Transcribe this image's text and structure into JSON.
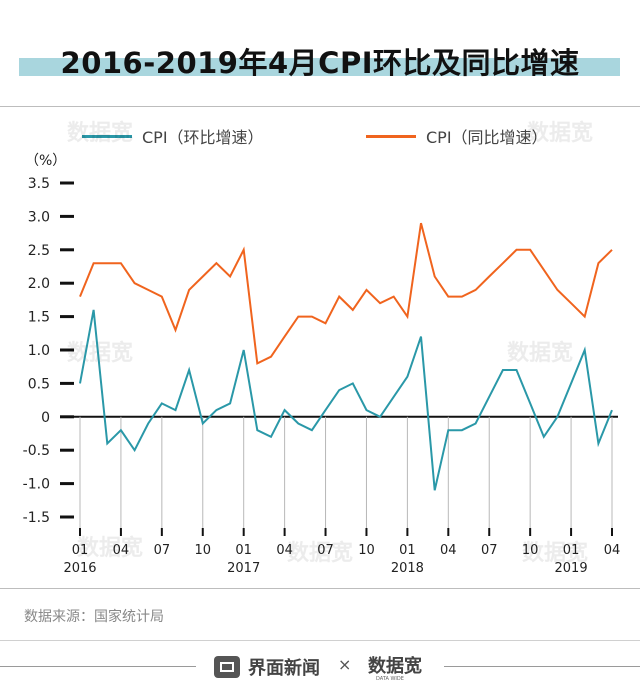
{
  "title": "2016-2019年4月CPI环比及同比增速",
  "unit_label": "（%）",
  "source_text": "数据来源：国家统计局",
  "footer": {
    "brand_name": "界面新闻",
    "times_sign": "×",
    "partner_logo_name": "data-wide-logo",
    "partner_logo_text": "数据宽",
    "partner_logo_sub": "DATA WIDE"
  },
  "colors": {
    "series_mom": "#2a98a8",
    "series_yoy": "#f0641e",
    "title_band": "#a9d6de",
    "axis": "#111111"
  },
  "chart_data": {
    "type": "line",
    "ylim": [
      -1.5,
      3.5
    ],
    "yticks": [
      "3.5",
      "3.0",
      "2.5",
      "2.0",
      "1.5",
      "1.0",
      "0.5",
      "0",
      "-0.5",
      "-1.0",
      "-1.5"
    ],
    "ytick_values": [
      3.5,
      3.0,
      2.5,
      2.0,
      1.5,
      1.0,
      0.5,
      0,
      -0.5,
      -1.0,
      -1.5
    ],
    "x_months": [
      "2016-01",
      "2016-02",
      "2016-03",
      "2016-04",
      "2016-05",
      "2016-06",
      "2016-07",
      "2016-08",
      "2016-09",
      "2016-10",
      "2016-11",
      "2016-12",
      "2017-01",
      "2017-02",
      "2017-03",
      "2017-04",
      "2017-05",
      "2017-06",
      "2017-07",
      "2017-08",
      "2017-09",
      "2017-10",
      "2017-11",
      "2017-12",
      "2018-01",
      "2018-02",
      "2018-03",
      "2018-04",
      "2018-05",
      "2018-06",
      "2018-07",
      "2018-08",
      "2018-09",
      "2018-10",
      "2018-11",
      "2018-12",
      "2019-01",
      "2019-02",
      "2019-03",
      "2019-04"
    ],
    "tick_labels": [
      {
        "index": 0,
        "month": "01",
        "year": "2016"
      },
      {
        "index": 3,
        "month": "04",
        "year": ""
      },
      {
        "index": 6,
        "month": "07",
        "year": ""
      },
      {
        "index": 9,
        "month": "10",
        "year": ""
      },
      {
        "index": 12,
        "month": "01",
        "year": "2017"
      },
      {
        "index": 15,
        "month": "04",
        "year": ""
      },
      {
        "index": 18,
        "month": "07",
        "year": ""
      },
      {
        "index": 21,
        "month": "10",
        "year": ""
      },
      {
        "index": 24,
        "month": "01",
        "year": "2018"
      },
      {
        "index": 27,
        "month": "04",
        "year": ""
      },
      {
        "index": 30,
        "month": "07",
        "year": ""
      },
      {
        "index": 33,
        "month": "10",
        "year": ""
      },
      {
        "index": 36,
        "month": "01",
        "year": "2019"
      },
      {
        "index": 39,
        "month": "04",
        "year": ""
      }
    ],
    "legend_position": "top",
    "grid": false,
    "series": [
      {
        "name": "CPI（环比增速）",
        "key": "mom",
        "values": [
          0.5,
          1.6,
          -0.4,
          -0.2,
          -0.5,
          -0.1,
          0.2,
          0.1,
          0.7,
          -0.1,
          0.1,
          0.2,
          1.0,
          -0.2,
          -0.3,
          0.1,
          -0.1,
          -0.2,
          0.1,
          0.4,
          0.5,
          0.1,
          0.0,
          0.3,
          0.6,
          1.2,
          -1.1,
          -0.2,
          -0.2,
          -0.1,
          0.3,
          0.7,
          0.7,
          0.2,
          -0.3,
          0.0,
          0.5,
          1.0,
          -0.4,
          0.1
        ]
      },
      {
        "name": "CPI（同比增速）",
        "key": "yoy",
        "values": [
          1.8,
          2.3,
          2.3,
          2.3,
          2.0,
          1.9,
          1.8,
          1.3,
          1.9,
          2.1,
          2.3,
          2.1,
          2.5,
          0.8,
          0.9,
          1.2,
          1.5,
          1.5,
          1.4,
          1.8,
          1.6,
          1.9,
          1.7,
          1.8,
          1.5,
          2.9,
          2.1,
          1.8,
          1.8,
          1.9,
          2.1,
          2.3,
          2.5,
          2.5,
          2.2,
          1.9,
          1.7,
          1.5,
          2.3,
          2.5
        ]
      }
    ]
  }
}
